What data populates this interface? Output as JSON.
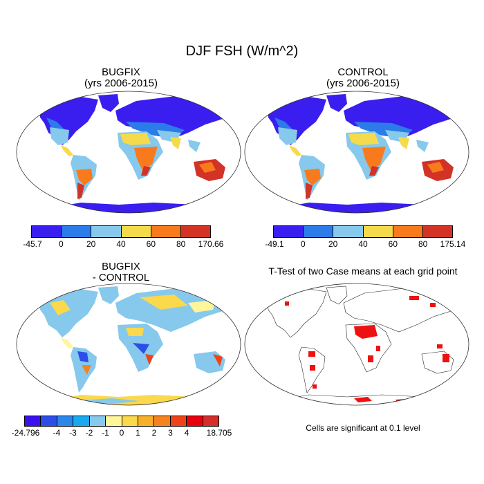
{
  "main_title": "DJF FSH (W/m^2)",
  "panels": [
    {
      "title_line1": "BUGFIX",
      "title_line2": "(yrs 2006-2015)",
      "colorbar": {
        "colors": [
          "#3a1ef0",
          "#2b7be8",
          "#86c9ec",
          "#f5db4c",
          "#f97a1c",
          "#d33227"
        ],
        "labels": [
          "-45.7",
          "0",
          "20",
          "40",
          "60",
          "80",
          "170.66"
        ]
      }
    },
    {
      "title_line1": "CONTROL",
      "title_line2": "(yrs 2006-2015)",
      "colorbar": {
        "colors": [
          "#3a1ef0",
          "#2b7be8",
          "#86c9ec",
          "#f5db4c",
          "#f97a1c",
          "#d33227"
        ],
        "labels": [
          "-49.1",
          "0",
          "20",
          "40",
          "60",
          "80",
          "175.14"
        ]
      }
    },
    {
      "title_line1": "BUGFIX",
      "title_line2": "- CONTROL",
      "colorbar": {
        "colors": [
          "#3a10ee",
          "#2b4ee8",
          "#2c87ea",
          "#18a9ef",
          "#86c9ec",
          "#fff59a",
          "#fbd84c",
          "#f8b02b",
          "#f6821f",
          "#ee4317",
          "#e8000f",
          "#d42e2a"
        ],
        "labels": [
          "-24.796",
          "-4",
          "-3",
          "-2",
          "-1",
          "0",
          "1",
          "2",
          "3",
          "4",
          "18.705"
        ]
      }
    },
    {
      "title_line1": "T-Test of two Case means at each grid point",
      "footnote": "Cells are significant at 0.1 level"
    }
  ]
}
